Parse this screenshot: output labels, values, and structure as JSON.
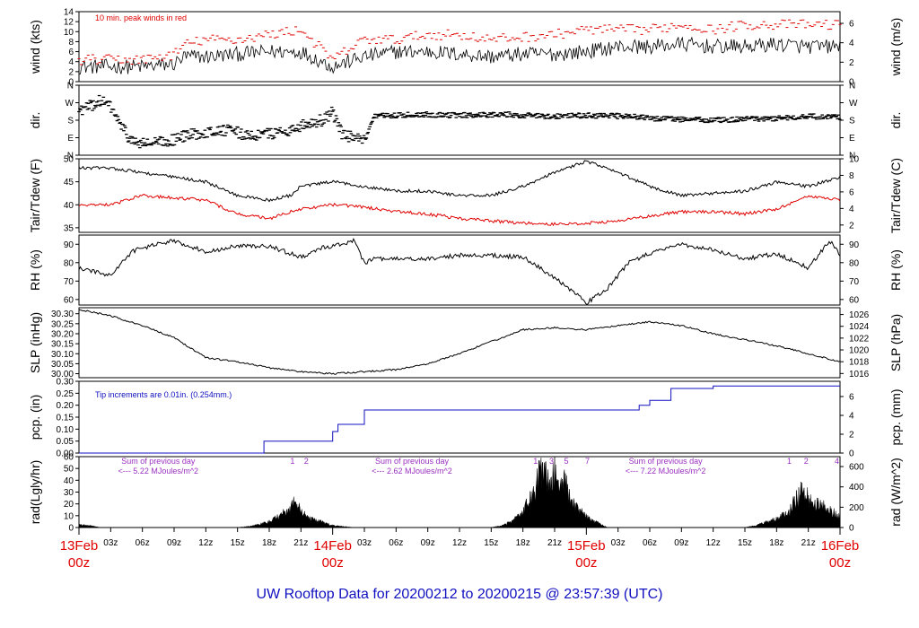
{
  "title": "UW Rooftop Data for 20200212  to  20200215 @ 23:57:39  (UTC)",
  "colors": {
    "axis": "#000000",
    "primary": "#000000",
    "peak": "#e00000",
    "dew": "#e00000",
    "precip": "#1010c0",
    "radnote": "#9a30c0",
    "date": "#e00000",
    "title": "#1010c0"
  },
  "time_axis": {
    "hours_total": 72,
    "hour_ticks": [
      "03z",
      "06z",
      "09z",
      "12z",
      "15z",
      "18z",
      "21z"
    ],
    "day_labels": [
      {
        "date": "13Feb",
        "time": "00z",
        "hour": 0
      },
      {
        "date": "14Feb",
        "time": "00z",
        "hour": 24
      },
      {
        "date": "15Feb",
        "time": "00z",
        "hour": 48
      },
      {
        "date": "16Feb",
        "time": "00z",
        "hour": 72
      }
    ]
  },
  "chart_data": [
    {
      "type": "line",
      "id": "wind",
      "ylabel": "wind (kts)",
      "ylabel_right": "wind (m/s)",
      "ylim": [
        0,
        14
      ],
      "yticks": [
        0,
        2,
        4,
        6,
        8,
        10,
        12,
        14
      ],
      "right_ticks": [
        {
          "label": "0",
          "at": 0
        },
        {
          "label": "2",
          "at": 3.89
        },
        {
          "label": "4",
          "at": 7.78
        },
        {
          "label": "6",
          "at": 11.66
        }
      ],
      "annotation": "10 min. peak winds in red",
      "x_hours": [
        0,
        3,
        6,
        9,
        10,
        12,
        15,
        18,
        21,
        24,
        27,
        30,
        33,
        36,
        39,
        42,
        45,
        48,
        51,
        54,
        57,
        60,
        63,
        66,
        69,
        72
      ],
      "series": [
        {
          "values": [
            3,
            3,
            3,
            3.5,
            5,
            5,
            5.5,
            6,
            6,
            3,
            5,
            6,
            6,
            5.5,
            5,
            5.5,
            5.5,
            6,
            7,
            7,
            7.5,
            7,
            7,
            7.5,
            7,
            7
          ]
        },
        {
          "values": [
            4,
            4,
            4,
            5,
            7,
            8,
            8,
            9,
            10,
            4,
            8,
            8,
            9,
            9,
            8,
            8.5,
            9,
            10,
            10,
            10,
            11,
            10,
            11,
            11,
            11,
            11
          ]
        }
      ]
    },
    {
      "type": "scatter",
      "id": "dir",
      "ylabel": "dir.",
      "ylabel_right": "dir.",
      "ylim": [
        0,
        360
      ],
      "yticks": [
        {
          "label": "N",
          "at": 0
        },
        {
          "label": "E",
          "at": 90
        },
        {
          "label": "S",
          "at": 180
        },
        {
          "label": "W",
          "at": 270
        },
        {
          "label": "N",
          "at": 360
        }
      ],
      "x_hours": [
        0,
        1,
        2,
        3,
        4,
        5,
        6,
        7,
        8,
        9,
        10,
        11,
        12,
        14,
        16,
        18,
        20,
        21,
        22,
        23,
        24,
        25,
        26,
        27,
        28,
        30,
        33,
        36,
        40,
        44,
        48,
        52,
        54,
        57,
        60,
        63,
        66,
        69,
        72
      ],
      "values": [
        230,
        250,
        280,
        250,
        150,
        70,
        60,
        60,
        70,
        80,
        100,
        110,
        120,
        130,
        100,
        110,
        130,
        150,
        170,
        180,
        220,
        100,
        90,
        70,
        200,
        205,
        210,
        205,
        210,
        200,
        205,
        200,
        190,
        185,
        180,
        185,
        190,
        200,
        195
      ]
    },
    {
      "type": "line",
      "id": "temp",
      "ylabel": "Tair/Tdew (F)",
      "ylabel_right": "Tair/Tdew (C)",
      "ylim": [
        34,
        50
      ],
      "yticks": [
        35,
        40,
        45,
        50
      ],
      "right_ticks": [
        {
          "label": "2",
          "at": 35.6
        },
        {
          "label": "4",
          "at": 39.2
        },
        {
          "label": "6",
          "at": 42.8
        },
        {
          "label": "8",
          "at": 46.4
        },
        {
          "label": "10",
          "at": 50
        }
      ],
      "x_hours": [
        0,
        3,
        6,
        9,
        12,
        15,
        18,
        20,
        21,
        24,
        27,
        30,
        33,
        36,
        39,
        42,
        45,
        48,
        51,
        54,
        57,
        60,
        63,
        66,
        69,
        72
      ],
      "series": [
        {
          "values": [
            48,
            48,
            47,
            46,
            45,
            42,
            41,
            42,
            44,
            45,
            44,
            43,
            43,
            42,
            42,
            44,
            47,
            49.5,
            47,
            44,
            42,
            42.5,
            43,
            45,
            44,
            46
          ]
        },
        {
          "values": [
            40,
            40,
            42,
            41.5,
            41,
            38,
            37,
            38.5,
            39,
            40,
            39.5,
            38.5,
            38,
            37,
            36.5,
            36,
            35.8,
            36,
            36.5,
            37.5,
            38.5,
            38.5,
            38,
            39,
            42,
            41
          ]
        }
      ]
    },
    {
      "type": "line",
      "id": "rh",
      "ylabel": "RH (%)",
      "ylabel_right": "RH (%)",
      "ylim": [
        57,
        95
      ],
      "yticks": [
        60,
        70,
        80,
        90
      ],
      "x_hours": [
        0,
        3,
        5,
        6,
        9,
        12,
        15,
        18,
        21,
        23,
        24,
        26,
        27,
        28,
        30,
        33,
        36,
        39,
        42,
        45,
        47,
        48,
        50,
        52,
        54,
        57,
        60,
        63,
        66,
        69,
        71,
        72
      ],
      "series": [
        {
          "values": [
            77,
            73,
            86,
            88,
            92,
            86,
            89,
            89,
            83,
            88,
            89,
            92,
            80,
            82,
            82,
            82,
            84,
            84,
            83,
            72,
            63,
            58,
            66,
            80,
            85,
            90,
            87,
            82,
            85,
            77,
            92,
            84
          ]
        }
      ]
    },
    {
      "type": "line",
      "id": "slp",
      "ylabel": "SLP (inHg)",
      "ylabel_right": "SLP (hPa)",
      "ylim": [
        29.98,
        30.33
      ],
      "yticks": [
        "30.00",
        "30.05",
        "30.10",
        "30.15",
        "30.20",
        "30.25",
        "30.30"
      ],
      "right_ticks": [
        {
          "label": "1016",
          "at": 30.001
        },
        {
          "label": "1018",
          "at": 30.06
        },
        {
          "label": "1020",
          "at": 30.119
        },
        {
          "label": "1022",
          "at": 30.178
        },
        {
          "label": "1024",
          "at": 30.237
        },
        {
          "label": "1026",
          "at": 30.296
        }
      ],
      "x_hours": [
        0,
        3,
        6,
        9,
        12,
        15,
        18,
        21,
        24,
        27,
        30,
        33,
        36,
        39,
        42,
        45,
        48,
        51,
        54,
        57,
        60,
        63,
        66,
        69,
        72
      ],
      "series": [
        {
          "values": [
            30.32,
            30.29,
            30.24,
            30.18,
            30.08,
            30.06,
            30.03,
            30.01,
            30.0,
            30.01,
            30.02,
            30.05,
            30.1,
            30.16,
            30.22,
            30.23,
            30.22,
            30.24,
            30.26,
            30.24,
            30.2,
            30.17,
            30.14,
            30.1,
            30.06
          ]
        }
      ]
    },
    {
      "type": "line",
      "id": "pcp",
      "ylabel": "pcp. (in)",
      "ylabel_right": "pcp. (mm)",
      "ylim": [
        0,
        0.3
      ],
      "yticks": [
        "0.00",
        "0.05",
        "0.10",
        "0.15",
        "0.20",
        "0.25",
        "0.30"
      ],
      "right_ticks": [
        {
          "label": "0",
          "at": 0
        },
        {
          "label": "2",
          "at": 0.0787
        },
        {
          "label": "4",
          "at": 0.1575
        },
        {
          "label": "6",
          "at": 0.2362
        }
      ],
      "annotation": "Tip increments are 0.01in. (0.254mm.)",
      "x_hours": [
        0,
        17.5,
        17.5,
        24,
        24,
        24.5,
        24.5,
        27,
        27,
        53,
        53,
        54,
        54,
        56,
        56,
        60,
        60,
        72
      ],
      "series": [
        {
          "values": [
            0,
            0,
            0.05,
            0.05,
            0.09,
            0.09,
            0.12,
            0.12,
            0.18,
            0.18,
            0.2,
            0.2,
            0.22,
            0.22,
            0.27,
            0.27,
            0.28,
            0.28
          ]
        }
      ]
    },
    {
      "type": "area",
      "id": "rad",
      "ylabel": "rad(Lgly/hr)",
      "ylabel_right": "rad (W/m^2)",
      "ylim": [
        0,
        60
      ],
      "yticks": [
        0,
        10,
        20,
        30,
        40,
        50,
        60
      ],
      "right_ticks": [
        {
          "label": "0",
          "at": 0
        },
        {
          "label": "200",
          "at": 17.2
        },
        {
          "label": "400",
          "at": 34.4
        },
        {
          "label": "600",
          "at": 51.6
        }
      ],
      "day_notes": [
        {
          "lines": [
            "Sum of previous day",
            "<--- 5.22 MJoules/m^2"
          ],
          "hour": 7.5
        },
        {
          "lines": [
            "Sum of previous day",
            "<--- 2.62 MJoules/m^2"
          ],
          "hour": 31.5
        },
        {
          "lines": [
            "Sum of previous day",
            "<--- 7.22 MJoules/m^2"
          ],
          "hour": 55.5
        }
      ],
      "markers": [
        {
          "label": "1",
          "hour": 20.2
        },
        {
          "label": "2",
          "hour": 21.5
        },
        {
          "label": "1",
          "hour": 43.2
        },
        {
          "label": "3",
          "hour": 44.7
        },
        {
          "label": "5",
          "hour": 46.1
        },
        {
          "label": "7",
          "hour": 48.1
        },
        {
          "label": "1",
          "hour": 67.2
        },
        {
          "label": "2",
          "hour": 68.8
        },
        {
          "label": "4",
          "hour": 71.7
        }
      ],
      "x_hours": [
        0,
        1,
        2,
        15,
        16,
        17,
        18,
        19,
        20,
        20.5,
        21,
        22,
        23,
        24,
        25,
        26,
        39,
        40,
        41,
        42,
        43,
        43.5,
        44,
        44.5,
        45,
        45.5,
        46,
        46.5,
        47,
        48,
        49,
        50,
        63,
        64,
        65,
        66,
        67,
        68,
        68.5,
        69,
        70,
        71,
        72
      ],
      "series": [
        {
          "values": [
            3,
            2,
            0,
            0,
            1,
            3,
            6,
            12,
            18,
            30,
            15,
            8,
            6,
            2,
            1,
            0,
            0,
            2,
            6,
            15,
            35,
            50,
            58,
            40,
            55,
            35,
            45,
            25,
            20,
            10,
            5,
            0,
            0,
            2,
            5,
            8,
            14,
            30,
            38,
            28,
            22,
            18,
            10
          ]
        }
      ]
    }
  ]
}
